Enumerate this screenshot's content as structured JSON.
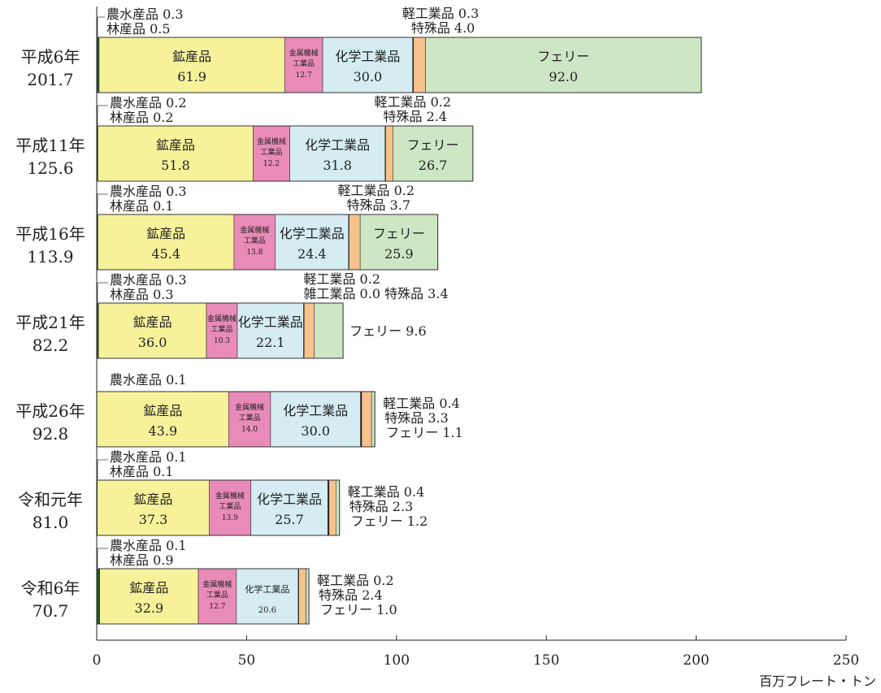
{
  "chart_data": {
    "type": "bar",
    "orientation": "horizontal",
    "stacked": true,
    "xlim": [
      0,
      250
    ],
    "xticks": [
      "0",
      "50",
      "100",
      "150",
      "200",
      "250"
    ],
    "xlabel": "百万フレート・トン",
    "grid": false,
    "segment_labels": {
      "agri": "農水産品",
      "forest": "林産品",
      "mineral": "鉱産品",
      "metal": "金属機械工業品",
      "chem": "化学工業品",
      "light": "軽工業品",
      "misc": "雑工業品",
      "special": "特殊品",
      "ferry": "フェリー"
    },
    "colors": {
      "agri": "#4a8c3a",
      "forest": "#1e5e2a",
      "mineral": "#f7f29a",
      "metal": "#e98bb8",
      "chem": "#d4ecf2",
      "light": "#1b1b1b",
      "misc": "#888888",
      "special": "#f7c28c",
      "ferry": "#cde6c4"
    },
    "categories": [
      {
        "name": "平成6年",
        "total": "201.7",
        "segments": [
          {
            "key": "agri",
            "value": 0.3,
            "text": "0.3"
          },
          {
            "key": "forest",
            "value": 0.5,
            "text": "0.5"
          },
          {
            "key": "mineral",
            "value": 61.9,
            "text": "61.9"
          },
          {
            "key": "metal",
            "value": 12.7,
            "text": "12.7"
          },
          {
            "key": "chem",
            "value": 30.0,
            "text": "30.0"
          },
          {
            "key": "light",
            "value": 0.3,
            "text": "0.3"
          },
          {
            "key": "special",
            "value": 4.0,
            "text": "4.0"
          },
          {
            "key": "ferry",
            "value": 92.0,
            "text": "92.0"
          }
        ]
      },
      {
        "name": "平成11年",
        "total": "125.6",
        "segments": [
          {
            "key": "agri",
            "value": 0.2,
            "text": "0.2"
          },
          {
            "key": "forest",
            "value": 0.2,
            "text": "0.2"
          },
          {
            "key": "mineral",
            "value": 51.8,
            "text": "51.8"
          },
          {
            "key": "metal",
            "value": 12.2,
            "text": "12.2"
          },
          {
            "key": "chem",
            "value": 31.8,
            "text": "31.8"
          },
          {
            "key": "light",
            "value": 0.2,
            "text": "0.2"
          },
          {
            "key": "special",
            "value": 2.4,
            "text": "2.4"
          },
          {
            "key": "ferry",
            "value": 26.7,
            "text": "26.7"
          }
        ]
      },
      {
        "name": "平成16年",
        "total": "113.9",
        "segments": [
          {
            "key": "agri",
            "value": 0.3,
            "text": "0.3"
          },
          {
            "key": "forest",
            "value": 0.1,
            "text": "0.1"
          },
          {
            "key": "mineral",
            "value": 45.4,
            "text": "45.4"
          },
          {
            "key": "metal",
            "value": 13.8,
            "text": "13.8"
          },
          {
            "key": "chem",
            "value": 24.4,
            "text": "24.4"
          },
          {
            "key": "light",
            "value": 0.2,
            "text": "0.2"
          },
          {
            "key": "special",
            "value": 3.7,
            "text": "3.7"
          },
          {
            "key": "ferry",
            "value": 25.9,
            "text": "25.9"
          }
        ]
      },
      {
        "name": "平成21年",
        "total": "82.2",
        "segments": [
          {
            "key": "agri",
            "value": 0.3,
            "text": "0.3"
          },
          {
            "key": "forest",
            "value": 0.3,
            "text": "0.3"
          },
          {
            "key": "mineral",
            "value": 36.0,
            "text": "36.0"
          },
          {
            "key": "metal",
            "value": 10.3,
            "text": "10.3"
          },
          {
            "key": "chem",
            "value": 22.1,
            "text": "22.1"
          },
          {
            "key": "light",
            "value": 0.2,
            "text": "0.2"
          },
          {
            "key": "misc",
            "value": 0.0,
            "text": "0.0"
          },
          {
            "key": "special",
            "value": 3.4,
            "text": "3.4"
          },
          {
            "key": "ferry",
            "value": 9.6,
            "text": "9.6"
          }
        ]
      },
      {
        "name": "平成26年",
        "total": "92.8",
        "segments": [
          {
            "key": "agri",
            "value": 0.1,
            "text": "0.1"
          },
          {
            "key": "mineral",
            "value": 43.9,
            "text": "43.9"
          },
          {
            "key": "metal",
            "value": 14.0,
            "text": "14.0"
          },
          {
            "key": "chem",
            "value": 30.0,
            "text": "30.0"
          },
          {
            "key": "light",
            "value": 0.4,
            "text": "0.4"
          },
          {
            "key": "special",
            "value": 3.3,
            "text": "3.3"
          },
          {
            "key": "ferry",
            "value": 1.1,
            "text": "1.1"
          }
        ]
      },
      {
        "name": "令和元年",
        "total": "81.0",
        "segments": [
          {
            "key": "agri",
            "value": 0.1,
            "text": "0.1"
          },
          {
            "key": "forest",
            "value": 0.1,
            "text": "0.1"
          },
          {
            "key": "mineral",
            "value": 37.3,
            "text": "37.3"
          },
          {
            "key": "metal",
            "value": 13.9,
            "text": "13.9"
          },
          {
            "key": "chem",
            "value": 25.7,
            "text": "25.7"
          },
          {
            "key": "light",
            "value": 0.4,
            "text": "0.4"
          },
          {
            "key": "special",
            "value": 2.3,
            "text": "2.3"
          },
          {
            "key": "ferry",
            "value": 1.2,
            "text": "1.2"
          }
        ]
      },
      {
        "name": "令和6年",
        "total": "70.7",
        "segments": [
          {
            "key": "agri",
            "value": 0.1,
            "text": "0.1"
          },
          {
            "key": "forest",
            "value": 0.9,
            "text": "0.9"
          },
          {
            "key": "mineral",
            "value": 32.9,
            "text": "32.9"
          },
          {
            "key": "metal",
            "value": 12.7,
            "text": "12.7"
          },
          {
            "key": "chem",
            "value": 20.6,
            "text": "20.6"
          },
          {
            "key": "light",
            "value": 0.2,
            "text": "0.2"
          },
          {
            "key": "special",
            "value": 2.4,
            "text": "2.4"
          },
          {
            "key": "ferry",
            "value": 1.0,
            "text": "1.0"
          }
        ]
      }
    ]
  }
}
